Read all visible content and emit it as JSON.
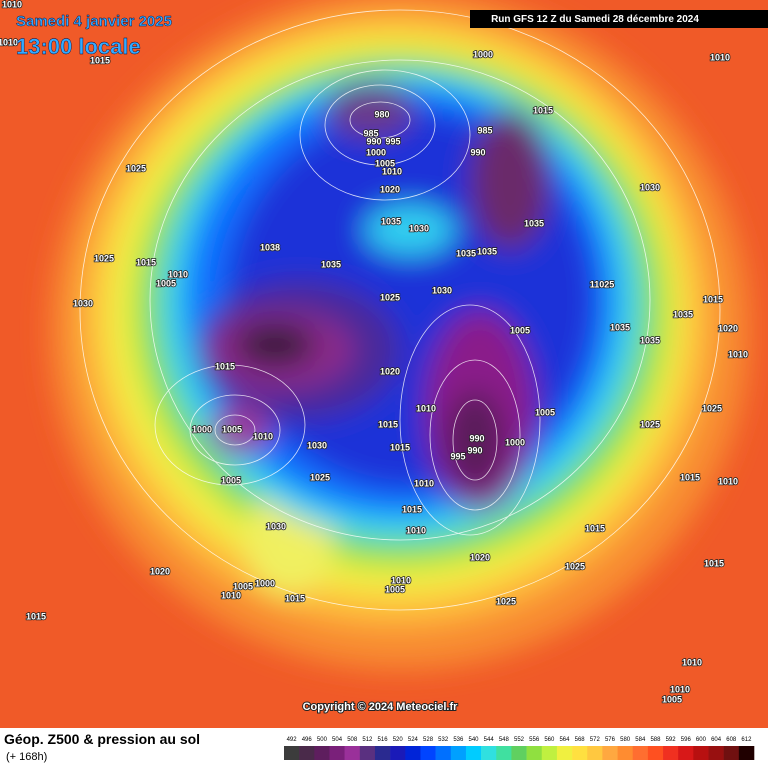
{
  "header": {
    "date": "Samedi 4 janvier 2025",
    "time": "13:00 locale",
    "run": "Run GFS 12 Z du Samedi 28 décembre 2024"
  },
  "copyright": "Copyright © 2024 Meteociel.fr",
  "footer": {
    "title": "Géop. Z500 & pression au sol",
    "lead": "(+ 168h)"
  },
  "colorbar": {
    "values": [
      492,
      496,
      500,
      504,
      508,
      512,
      516,
      520,
      524,
      528,
      532,
      536,
      540,
      544,
      548,
      552,
      556,
      560,
      564,
      568,
      572,
      576,
      580,
      584,
      588,
      592,
      596,
      600,
      604,
      608,
      612
    ],
    "colors": [
      "#3c3c3c",
      "#4a2a4a",
      "#5e1e5e",
      "#7a207a",
      "#9a309a",
      "#5a3080",
      "#2a2a90",
      "#1a1ab8",
      "#0024d8",
      "#0044ff",
      "#0070ff",
      "#00a0ff",
      "#00ccff",
      "#30e0e0",
      "#40e0a0",
      "#60d060",
      "#90e040",
      "#c0f040",
      "#f0f040",
      "#ffe040",
      "#ffc840",
      "#ffa840",
      "#ff8c30",
      "#ff6e30",
      "#ff5020",
      "#f03020",
      "#d81818",
      "#b81010",
      "#981010",
      "#701010",
      "#200000"
    ]
  },
  "pressure_labels": [
    "1010",
    "1010",
    "1015",
    "1000",
    "1010",
    "980",
    "985",
    "1015",
    "985",
    "990",
    "995",
    "990",
    "1000",
    "1005",
    "1010",
    "1025",
    "1030",
    "1020",
    "1035",
    "1030",
    "1035",
    "1038",
    "1035",
    "1035",
    "1025",
    "1015",
    "1035",
    "1010",
    "1005",
    "11025",
    "1030",
    "1025",
    "1030",
    "1015",
    "1035",
    "1020",
    "1035",
    "1005",
    "1035",
    "1010",
    "1015",
    "1020",
    "1010",
    "1005",
    "1025",
    "1015",
    "1000",
    "1005",
    "990",
    "1010",
    "1000",
    "1025",
    "990",
    "995",
    "1015",
    "1030",
    "1010",
    "1005",
    "1025",
    "1015",
    "1010",
    "1015",
    "1030",
    "1010",
    "1015",
    "1020",
    "1025",
    "1015",
    "1020",
    "1010",
    "1005",
    "1000",
    "1005",
    "1010",
    "1015",
    "1025",
    "1015",
    "1010",
    "1010",
    "1005"
  ]
}
